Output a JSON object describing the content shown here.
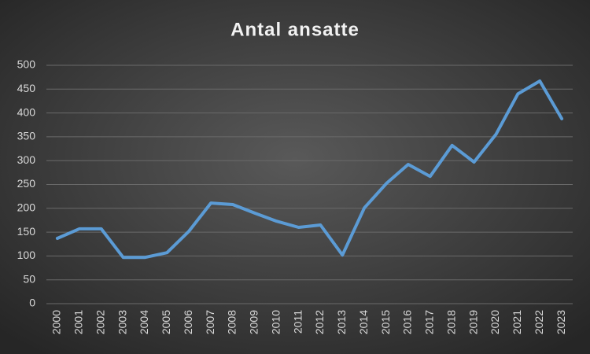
{
  "chart_data": {
    "type": "line",
    "title": "Antal ansatte",
    "categories": [
      "2000",
      "2001",
      "2002",
      "2003",
      "2004",
      "2005",
      "2006",
      "2007",
      "2008",
      "2009",
      "2010",
      "2011",
      "2012",
      "2013",
      "2014",
      "2015",
      "2016",
      "2017",
      "2018",
      "2019",
      "2020",
      "2021",
      "2022",
      "2023"
    ],
    "values": [
      137,
      157,
      157,
      97,
      97,
      107,
      152,
      211,
      208,
      190,
      173,
      160,
      165,
      102,
      201,
      252,
      292,
      267,
      332,
      297,
      355,
      440,
      467,
      388
    ],
    "color": "#5b9bd5",
    "ylim": [
      0,
      500
    ],
    "yticks": [
      0,
      50,
      100,
      150,
      200,
      250,
      300,
      350,
      400,
      450,
      500
    ],
    "grid": true
  }
}
